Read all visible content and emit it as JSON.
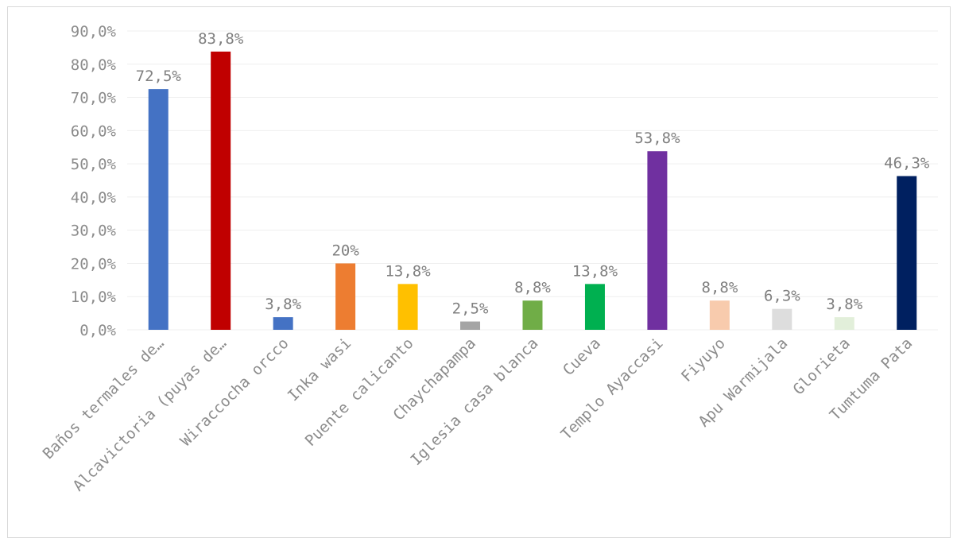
{
  "chart_data": {
    "type": "bar",
    "title": "",
    "xlabel": "",
    "ylabel": "",
    "ylim": [
      0,
      90
    ],
    "yticks": [
      "0,0%",
      "10,0%",
      "20,0%",
      "30,0%",
      "40,0%",
      "50,0%",
      "60,0%",
      "70,0%",
      "80,0%",
      "90,0%"
    ],
    "grid": true,
    "legend": "none",
    "categories": [
      "Baños termales de…",
      "Alcavictoria (puyas de…",
      "Wiraccocha orcco",
      "Inka wasi",
      "Puente calicanto",
      "Chaychapampa",
      "Iglesia casa blanca",
      "Cueva",
      "Templo Ayaccasi",
      "Fiyuyo",
      "Apu Warmijala",
      "Glorieta",
      "Tumtuma Pata"
    ],
    "values": [
      72.5,
      83.8,
      3.8,
      20,
      13.8,
      2.5,
      8.8,
      13.8,
      53.8,
      8.8,
      6.3,
      3.8,
      46.3
    ],
    "data_labels": [
      "72,5%",
      "83,8%",
      "3,8%",
      "20%",
      "13,8%",
      "2,5%",
      "8,8%",
      "13,8%",
      "53,8%",
      "8,8%",
      "6,3%",
      "3,8%",
      "46,3%"
    ],
    "colors": [
      "#4472c4",
      "#c00000",
      "#4472c4",
      "#ed7d31",
      "#ffc000",
      "#a5a5a5",
      "#70ad47",
      "#00b050",
      "#7030a0",
      "#f8cbad",
      "#dddddd",
      "#e2efda",
      "#002060"
    ]
  }
}
